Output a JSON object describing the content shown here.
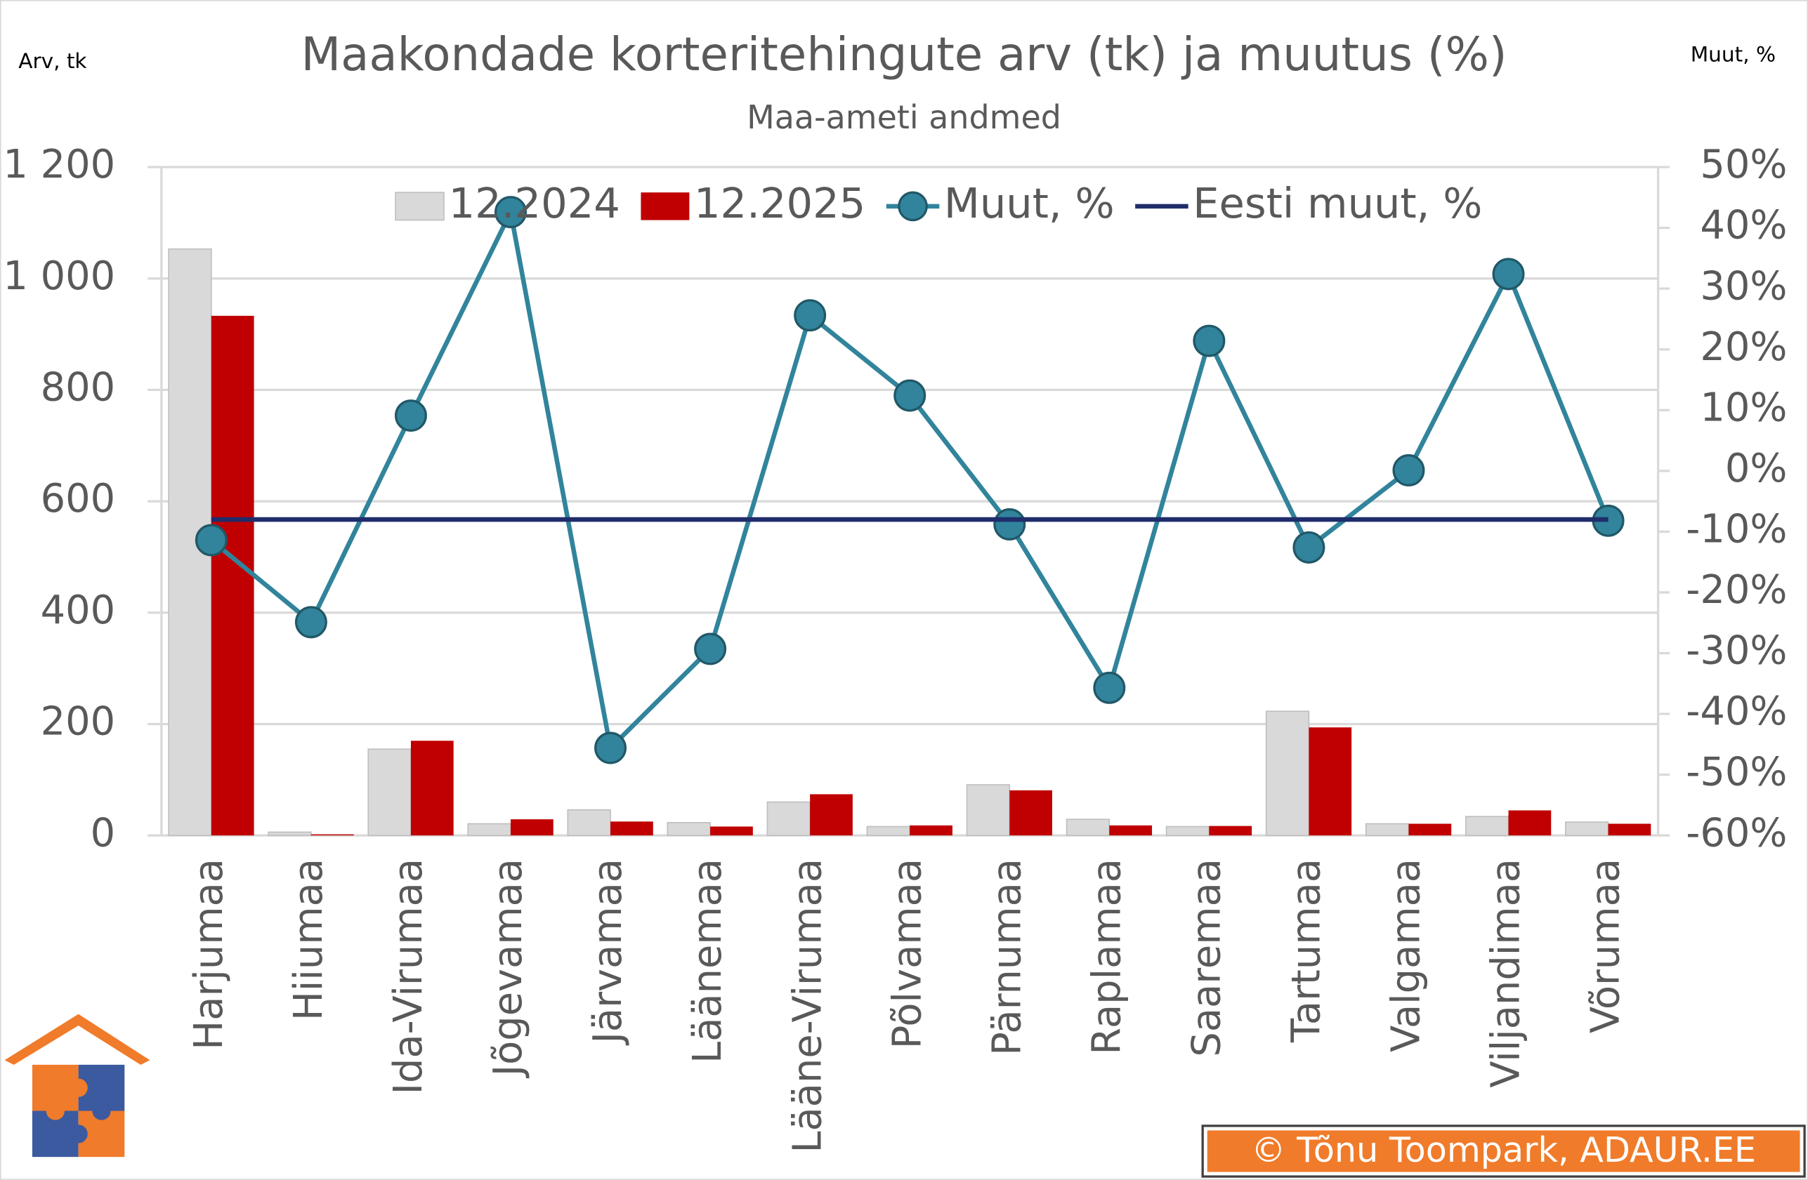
{
  "chart_data": {
    "type": "combo",
    "title": "Maakondade korteritehingute arv (tk) ja muutus (%)",
    "subtitle": "Maa-ameti andmed",
    "y_label": "Arv, tk",
    "y2_label": "Muut, %",
    "credit": "© Tõnu Toompark, ADAUR.EE",
    "categories": [
      "Harjumaa",
      "Hiiumaa",
      "Ida-Virumaa",
      "Jõgevamaa",
      "Järvamaa",
      "Läänemaa",
      "Lääne-Virumaa",
      "Põlvamaa",
      "Pärnumaa",
      "Raplamaa",
      "Saaremaa",
      "Tartumaa",
      "Valgamaa",
      "Viljandimaa",
      "Võrumaa"
    ],
    "series": [
      {
        "name": "12.2024",
        "type": "bar",
        "color": "#d9d9d9",
        "values": [
          1053,
          6,
          155,
          21,
          46,
          23,
          60,
          16,
          91,
          29,
          16,
          223,
          21,
          34,
          24
        ]
      },
      {
        "name": "12.2025",
        "type": "bar",
        "color": "#c00000",
        "values": [
          933,
          2,
          170,
          29,
          25,
          16,
          74,
          18,
          81,
          18,
          17,
          194,
          21,
          45,
          21
        ]
      },
      {
        "name": "Muut, %",
        "type": "line",
        "marker": true,
        "axis": "y2",
        "color": "#31849b",
        "values": [
          -11.4,
          -24.9,
          9.1,
          42.6,
          -45.6,
          -29.3,
          25.6,
          12.4,
          -8.8,
          -35.7,
          21.4,
          -12.6,
          0.1,
          32.4,
          -8.2
        ]
      },
      {
        "name": "Eesti muut, %",
        "type": "line",
        "marker": false,
        "axis": "y2",
        "color": "#1f2d6b",
        "values": [
          -8,
          -8,
          -8,
          -8,
          -8,
          -8,
          -8,
          -8,
          -8,
          -8,
          -8,
          -8,
          -8,
          -8,
          -8
        ]
      }
    ],
    "ylim": [
      0,
      1200
    ],
    "yticks": [
      0,
      200,
      400,
      600,
      800,
      {
        "value": 1000,
        "label": "1 000"
      },
      {
        "value": 1200,
        "label": "1 200"
      }
    ],
    "y2lim": [
      -60,
      50
    ],
    "y2ticks": [
      {
        "value": -60,
        "label": "-60%"
      },
      {
        "value": -50,
        "label": "-50%"
      },
      {
        "value": -40,
        "label": "-40%"
      },
      {
        "value": -30,
        "label": "-30%"
      },
      {
        "value": -20,
        "label": "-20%"
      },
      {
        "value": -10,
        "label": "-10%"
      },
      {
        "value": 0,
        "label": "0%"
      },
      {
        "value": 10,
        "label": "10%"
      },
      {
        "value": 20,
        "label": "20%"
      },
      {
        "value": 30,
        "label": "30%"
      },
      {
        "value": 40,
        "label": "40%"
      },
      {
        "value": 50,
        "label": "50%"
      }
    ],
    "grid": true
  }
}
